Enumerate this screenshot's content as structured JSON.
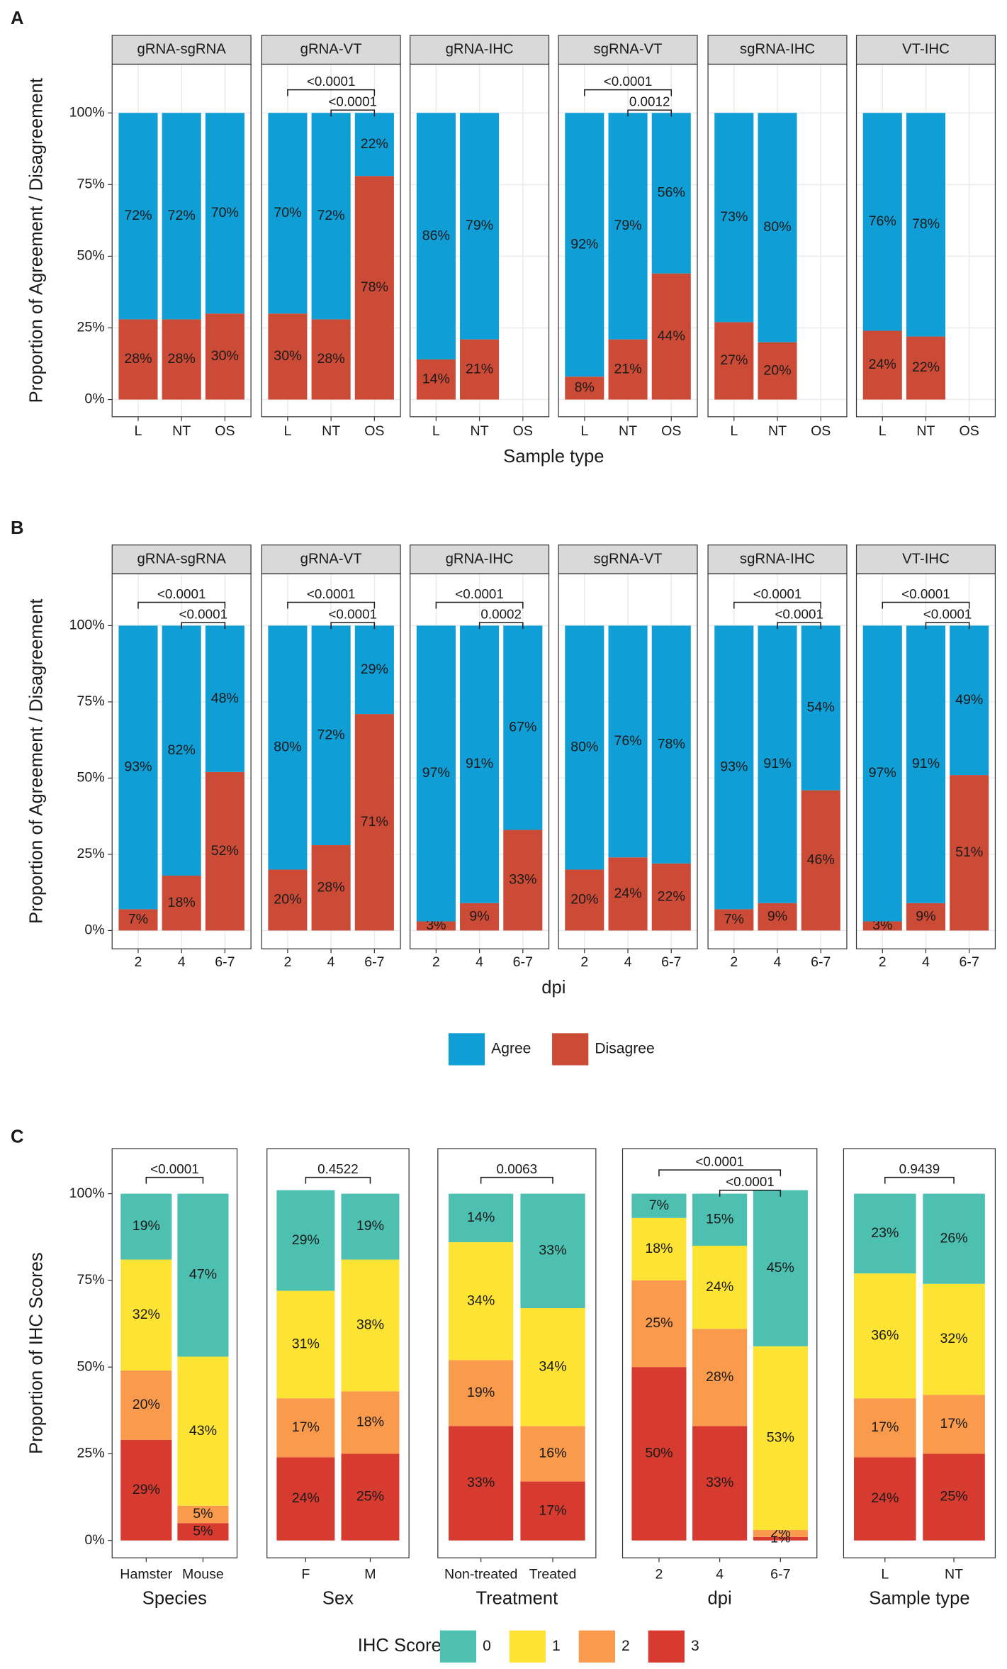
{
  "chart_data": [
    {
      "type": "bar",
      "panel": "A",
      "ylabel": "Proportion of Agreement / Disagreement",
      "xlabel": "Sample type",
      "ylim": [
        -6,
        117
      ],
      "yticks": [
        {
          "value": 0,
          "label": "0%"
        },
        {
          "value": 25,
          "label": "25%"
        },
        {
          "value": 50,
          "label": "50%"
        },
        {
          "value": 75,
          "label": "75%"
        },
        {
          "value": 100,
          "label": "100%"
        }
      ],
      "grid": true,
      "series": [
        {
          "color": "#0f9ed5"
        },
        {
          "color": "#cc4b36"
        }
      ],
      "facets": [
        {
          "strip": "gRNA-sgRNA",
          "categories": [
            "L",
            "NT",
            "OS"
          ],
          "values": [
            [
              72,
              72,
              70
            ],
            [
              28,
              28,
              30
            ]
          ],
          "value_labels": [
            [
              "72%",
              "72%",
              "70%"
            ],
            [
              "28%",
              "28%",
              "30%"
            ]
          ]
        },
        {
          "strip": "gRNA-VT",
          "categories": [
            "L",
            "NT",
            "OS"
          ],
          "values": [
            [
              70,
              72,
              22
            ],
            [
              30,
              28,
              78
            ]
          ],
          "value_labels": [
            [
              "70%",
              "72%",
              "22%"
            ],
            [
              "30%",
              "28%",
              "78%"
            ]
          ],
          "comparisons": [
            {
              "groups": [
                "L",
                "OS"
              ],
              "label": "<0.0001"
            },
            {
              "groups": [
                "NT",
                "OS"
              ],
              "label": "<0.0001"
            }
          ]
        },
        {
          "strip": "gRNA-IHC",
          "categories": [
            "L",
            "NT",
            "OS"
          ],
          "values": [
            [
              86,
              79,
              null
            ],
            [
              14,
              21,
              null
            ]
          ],
          "value_labels": [
            [
              "86%",
              "79%",
              null
            ],
            [
              "14%",
              "21%",
              null
            ]
          ]
        },
        {
          "strip": "sgRNA-VT",
          "categories": [
            "L",
            "NT",
            "OS"
          ],
          "values": [
            [
              92,
              79,
              56
            ],
            [
              8,
              21,
              44
            ]
          ],
          "value_labels": [
            [
              "92%",
              "79%",
              "56%"
            ],
            [
              "8%",
              "21%",
              "44%"
            ]
          ],
          "comparisons": [
            {
              "groups": [
                "L",
                "OS"
              ],
              "label": "<0.0001"
            },
            {
              "groups": [
                "NT",
                "OS"
              ],
              "label": "0.0012"
            }
          ]
        },
        {
          "strip": "sgRNA-IHC",
          "categories": [
            "L",
            "NT",
            "OS"
          ],
          "values": [
            [
              73,
              80,
              null
            ],
            [
              27,
              20,
              null
            ]
          ],
          "value_labels": [
            [
              "73%",
              "80%",
              null
            ],
            [
              "27%",
              "20%",
              null
            ]
          ]
        },
        {
          "strip": "VT-IHC",
          "categories": [
            "L",
            "NT",
            "OS"
          ],
          "values": [
            [
              76,
              78,
              null
            ],
            [
              24,
              22,
              null
            ]
          ],
          "value_labels": [
            [
              "76%",
              "78%",
              null
            ],
            [
              "24%",
              "22%",
              null
            ]
          ]
        }
      ]
    },
    {
      "type": "bar",
      "panel": "B",
      "ylabel": "Proportion of Agreement / Disagreement",
      "xlabel": "dpi",
      "ylim": [
        -6,
        117
      ],
      "yticks": [
        {
          "value": 0,
          "label": "0%"
        },
        {
          "value": 25,
          "label": "25%"
        },
        {
          "value": 50,
          "label": "50%"
        },
        {
          "value": 75,
          "label": "75%"
        },
        {
          "value": 100,
          "label": "100%"
        }
      ],
      "grid": true,
      "legend": "bottom",
      "series": [
        {
          "name": "Agree",
          "color": "#0f9ed5"
        },
        {
          "name": "Disagree",
          "color": "#cc4b36"
        }
      ],
      "facets": [
        {
          "strip": "gRNA-sgRNA",
          "categories": [
            "2",
            "4",
            "6-7"
          ],
          "values": [
            [
              93,
              82,
              48
            ],
            [
              7,
              18,
              52
            ]
          ],
          "value_labels": [
            [
              "93%",
              "82%",
              "48%"
            ],
            [
              "7%",
              "18%",
              "52%"
            ]
          ],
          "comparisons": [
            {
              "groups": [
                "2",
                "6-7"
              ],
              "label": "<0.0001"
            },
            {
              "groups": [
                "4",
                "6-7"
              ],
              "label": "<0.0001"
            }
          ]
        },
        {
          "strip": "gRNA-VT",
          "categories": [
            "2",
            "4",
            "6-7"
          ],
          "values": [
            [
              80,
              72,
              29
            ],
            [
              20,
              28,
              71
            ]
          ],
          "value_labels": [
            [
              "80%",
              "72%",
              "29%"
            ],
            [
              "20%",
              "28%",
              "71%"
            ]
          ],
          "comparisons": [
            {
              "groups": [
                "2",
                "6-7"
              ],
              "label": "<0.0001"
            },
            {
              "groups": [
                "4",
                "6-7"
              ],
              "label": "<0.0001"
            }
          ]
        },
        {
          "strip": "gRNA-IHC",
          "categories": [
            "2",
            "4",
            "6-7"
          ],
          "values": [
            [
              97,
              91,
              67
            ],
            [
              3,
              9,
              33
            ]
          ],
          "value_labels": [
            [
              "97%",
              "91%",
              "67%"
            ],
            [
              "3%",
              "9%",
              "33%"
            ]
          ],
          "comparisons": [
            {
              "groups": [
                "2",
                "6-7"
              ],
              "label": "<0.0001"
            },
            {
              "groups": [
                "4",
                "6-7"
              ],
              "label": "0.0002"
            }
          ]
        },
        {
          "strip": "sgRNA-VT",
          "categories": [
            "2",
            "4",
            "6-7"
          ],
          "values": [
            [
              80,
              76,
              78
            ],
            [
              20,
              24,
              22
            ]
          ],
          "value_labels": [
            [
              "80%",
              "76%",
              "78%"
            ],
            [
              "20%",
              "24%",
              "22%"
            ]
          ]
        },
        {
          "strip": "sgRNA-IHC",
          "categories": [
            "2",
            "4",
            "6-7"
          ],
          "values": [
            [
              93,
              91,
              54
            ],
            [
              7,
              9,
              46
            ]
          ],
          "value_labels": [
            [
              "93%",
              "91%",
              "54%"
            ],
            [
              "7%",
              "9%",
              "46%"
            ]
          ],
          "comparisons": [
            {
              "groups": [
                "2",
                "6-7"
              ],
              "label": "<0.0001"
            },
            {
              "groups": [
                "4",
                "6-7"
              ],
              "label": "<0.0001"
            }
          ]
        },
        {
          "strip": "VT-IHC",
          "categories": [
            "2",
            "4",
            "6-7"
          ],
          "values": [
            [
              97,
              91,
              49
            ],
            [
              3,
              9,
              51
            ]
          ],
          "value_labels": [
            [
              "97%",
              "91%",
              "49%"
            ],
            [
              "3%",
              "9%",
              "51%"
            ]
          ],
          "comparisons": [
            {
              "groups": [
                "2",
                "6-7"
              ],
              "label": "<0.0001"
            },
            {
              "groups": [
                "4",
                "6-7"
              ],
              "label": "<0.0001"
            }
          ]
        }
      ]
    },
    {
      "type": "bar",
      "panel": "C",
      "ylabel": "Proportion of IHC Scores",
      "ylim": [
        -5,
        113
      ],
      "yticks": [
        {
          "value": 0,
          "label": "0%"
        },
        {
          "value": 25,
          "label": "25%"
        },
        {
          "value": 50,
          "label": "50%"
        },
        {
          "value": 75,
          "label": "75%"
        },
        {
          "value": 100,
          "label": "100%"
        }
      ],
      "grid": false,
      "legend": "bottom",
      "legend_title": "IHC Scores",
      "series": [
        {
          "name": "0",
          "color": "#4dc0b2"
        },
        {
          "name": "1",
          "color": "#fde334"
        },
        {
          "name": "2",
          "color": "#f99a4c"
        },
        {
          "name": "3",
          "color": "#d73a2f"
        }
      ],
      "facets": [
        {
          "xlabel": "Species",
          "categories": [
            "Hamster",
            "Mouse"
          ],
          "values": [
            [
              19,
              47
            ],
            [
              32,
              43
            ],
            [
              20,
              5
            ],
            [
              29,
              5
            ]
          ],
          "value_labels": [
            [
              "19%",
              "47%"
            ],
            [
              "32%",
              "43%"
            ],
            [
              "20%",
              "5%"
            ],
            [
              "29%",
              "5%"
            ]
          ],
          "comparisons": [
            {
              "groups": [
                "Hamster",
                "Mouse"
              ],
              "label": "<0.0001"
            }
          ]
        },
        {
          "xlabel": "Sex",
          "categories": [
            "F",
            "M"
          ],
          "values": [
            [
              29,
              19
            ],
            [
              31,
              38
            ],
            [
              17,
              18
            ],
            [
              24,
              25
            ]
          ],
          "value_labels": [
            [
              "29%",
              "19%"
            ],
            [
              "31%",
              "38%"
            ],
            [
              "17%",
              "18%"
            ],
            [
              "24%",
              "25%"
            ]
          ],
          "comparisons": [
            {
              "groups": [
                "F",
                "M"
              ],
              "label": "0.4522"
            }
          ]
        },
        {
          "xlabel": "Treatment",
          "categories": [
            "Non-treated",
            "Treated"
          ],
          "values": [
            [
              14,
              33
            ],
            [
              34,
              34
            ],
            [
              19,
              16
            ],
            [
              33,
              17
            ]
          ],
          "value_labels": [
            [
              "14%",
              "33%"
            ],
            [
              "34%",
              "34%"
            ],
            [
              "19%",
              "16%"
            ],
            [
              "33%",
              "17%"
            ]
          ],
          "comparisons": [
            {
              "groups": [
                "Non-treated",
                "Treated"
              ],
              "label": "0.0063"
            }
          ]
        },
        {
          "xlabel": "dpi",
          "categories": [
            "2",
            "4",
            "6-7"
          ],
          "values": [
            [
              7,
              15,
              45
            ],
            [
              18,
              24,
              53
            ],
            [
              25,
              28,
              2
            ],
            [
              50,
              33,
              1
            ]
          ],
          "value_labels": [
            [
              "7%",
              "15%",
              "45%"
            ],
            [
              "18%",
              "24%",
              "53%"
            ],
            [
              "25%",
              "28%",
              "2%"
            ],
            [
              "50%",
              "33%",
              "1%"
            ]
          ],
          "comparisons": [
            {
              "groups": [
                "2",
                "6-7"
              ],
              "label": "<0.0001"
            },
            {
              "groups": [
                "4",
                "6-7"
              ],
              "label": "<0.0001"
            }
          ]
        },
        {
          "xlabel": "Sample type",
          "categories": [
            "L",
            "NT"
          ],
          "values": [
            [
              23,
              26
            ],
            [
              36,
              32
            ],
            [
              17,
              17
            ],
            [
              24,
              25
            ]
          ],
          "value_labels": [
            [
              "23%",
              "26%"
            ],
            [
              "36%",
              "32%"
            ],
            [
              "17%",
              "17%"
            ],
            [
              "24%",
              "25%"
            ]
          ],
          "comparisons": [
            {
              "groups": [
                "L",
                "NT"
              ],
              "label": "0.9439"
            }
          ]
        }
      ]
    }
  ]
}
